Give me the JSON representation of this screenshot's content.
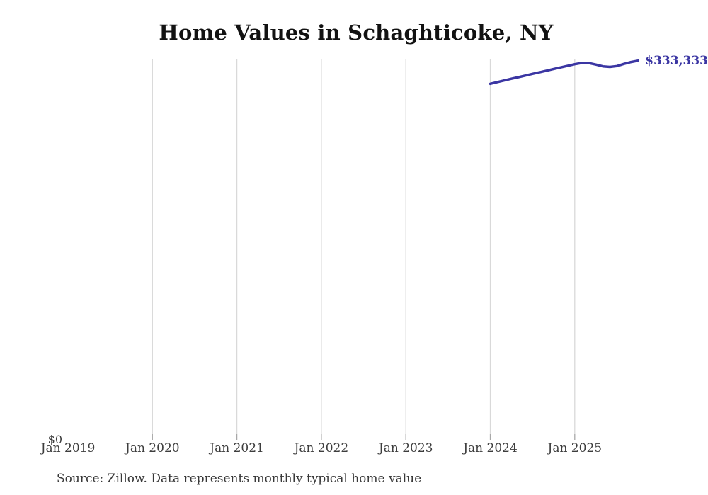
{
  "chart": {
    "title": "Home Values in Schaghticoke, NY",
    "latest_value_label": "$333,333",
    "y_axis": {
      "zero_label": "$0"
    },
    "source_note": "Source: Zillow. Data represents monthly typical home value",
    "colors": {
      "line": "#3b36a3",
      "value_label": "#3b36a3",
      "gridline": "#d9d9d9",
      "axis_tick": "#a8a8a8",
      "tick_text": "#3d3d3d",
      "title_text": "#121212",
      "source_text": "#383838"
    }
  },
  "chart_data": {
    "type": "line",
    "title": "Home Values in Schaghticoke, NY",
    "xlabel": "",
    "ylabel": "",
    "ylim": [
      0,
      335000
    ],
    "grid": "vertical-only",
    "legend": "none",
    "x_ticks": [
      {
        "label": "Jan 2019",
        "gridline": false
      },
      {
        "label": "Jan 2020",
        "gridline": true
      },
      {
        "label": "Jan 2021",
        "gridline": true
      },
      {
        "label": "Jan 2022",
        "gridline": true
      },
      {
        "label": "Jan 2023",
        "gridline": true
      },
      {
        "label": "Jan 2024",
        "gridline": true
      },
      {
        "label": "Jan 2025",
        "gridline": true
      }
    ],
    "y_ticks": [
      {
        "label": "$0",
        "value": 0
      }
    ],
    "series": [
      {
        "name": "Monthly typical home value",
        "start": "2024-01",
        "interval": "monthly",
        "x": [
          "Jan 2024",
          "Feb 2024",
          "Mar 2024",
          "Apr 2024",
          "May 2024",
          "Jun 2024",
          "Jul 2024",
          "Aug 2024",
          "Sep 2024",
          "Oct 2024",
          "Nov 2024",
          "Dec 2024",
          "Jan 2025",
          "Feb 2025",
          "Mar 2025",
          "Apr 2025",
          "May 2025",
          "Jun 2025",
          "Jul 2025",
          "Aug 2025",
          "Sep 2025",
          "Oct 2025"
        ],
        "values": [
          313000,
          314500,
          315900,
          317400,
          318800,
          320200,
          321700,
          323100,
          324500,
          326000,
          327400,
          328800,
          330200,
          331300,
          331200,
          329900,
          328300,
          327800,
          328600,
          330500,
          332100,
          333333
        ]
      }
    ],
    "annotations": [
      {
        "text": "$333,333",
        "x": "Oct 2025",
        "value": 333333
      }
    ]
  }
}
